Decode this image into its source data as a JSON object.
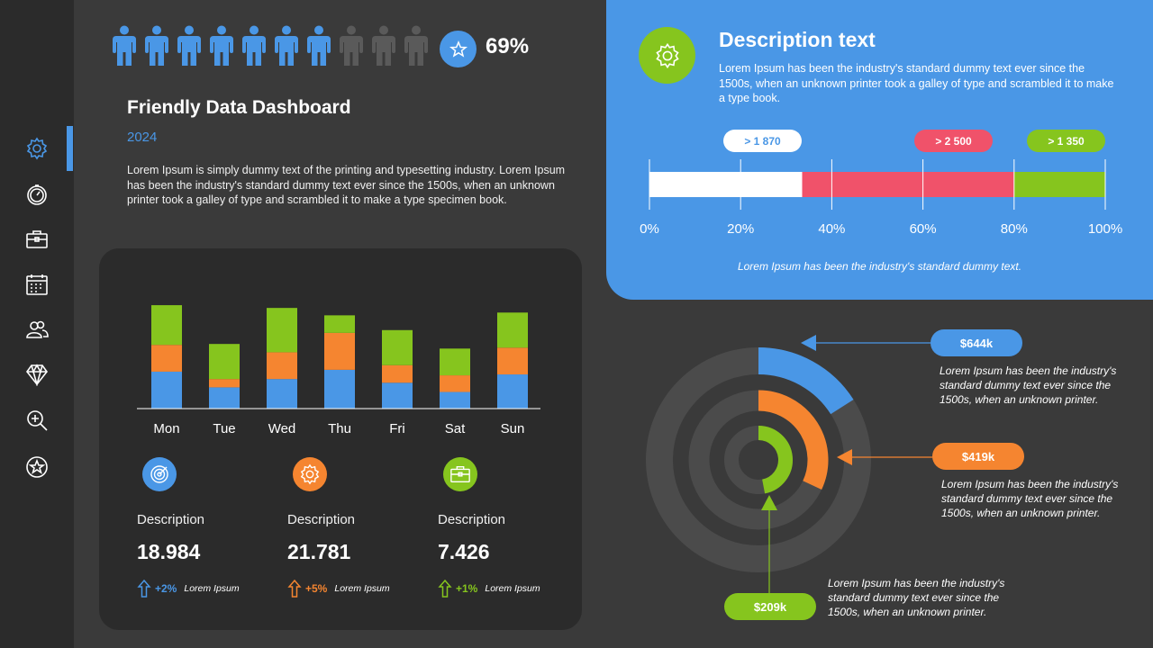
{
  "colors": {
    "blue": "#4a97e6",
    "orange": "#f58530",
    "green": "#86c51e",
    "red": "#f0526a",
    "white": "#ffffff",
    "gray": "#5a5a5a"
  },
  "sidebar": {
    "items": [
      {
        "icon": "gear-icon"
      },
      {
        "icon": "clock-icon"
      },
      {
        "icon": "briefcase-icon"
      },
      {
        "icon": "calendar-icon"
      },
      {
        "icon": "users-icon"
      },
      {
        "icon": "diamond-icon"
      },
      {
        "icon": "zoom-icon"
      },
      {
        "icon": "star-icon"
      }
    ],
    "active_index": 0
  },
  "people": {
    "total": 10,
    "filled": 7,
    "percent_label": "69%"
  },
  "header": {
    "title": "Friendly Data Dashboard",
    "year": "2024",
    "description": "Lorem Ipsum is simply dummy text of the printing and typesetting industry. Lorem Ipsum has been the industry's standard dummy text ever since the 1500s, when an unknown printer took a galley of type and scrambled it to make a type specimen book."
  },
  "chart_data": {
    "type": "bar",
    "stacked": true,
    "categories": [
      "Mon",
      "Tue",
      "Wed",
      "Thu",
      "Fri",
      "Sat",
      "Sun"
    ],
    "series": [
      {
        "values": [
          40,
          23,
          32,
          42,
          28,
          18,
          37
        ],
        "color": "#4a97e6"
      },
      {
        "values": [
          29,
          9,
          29,
          40,
          19,
          18,
          29
        ],
        "color": "#f58530"
      },
      {
        "values": [
          43,
          38,
          48,
          19,
          38,
          29,
          38
        ],
        "color": "#86c51e"
      }
    ],
    "ylim": [
      0,
      115
    ],
    "grid": false
  },
  "kpis": [
    {
      "icon": "target-icon",
      "color": "#4a97e6",
      "label": "Description",
      "value": "18.984",
      "trend": "+2%",
      "note": "Lorem Ipsum"
    },
    {
      "icon": "gear-icon",
      "color": "#f58530",
      "label": "Description",
      "value": "21.781",
      "trend": "+5%",
      "note": "Lorem Ipsum"
    },
    {
      "icon": "briefcase-icon",
      "color": "#86c51e",
      "label": "Description",
      "value": "7.426",
      "trend": "+1%",
      "note": "Lorem Ipsum"
    }
  ],
  "panel": {
    "title": "Description text",
    "description": "Lorem Ipsum has been the industry's standard dummy text ever since the 1500s, when an unknown printer took a galley of type and scrambled it to make a type book.",
    "footer": "Lorem Ipsum has been the industry's standard dummy text.",
    "segments": [
      {
        "label": "> 1 870",
        "start": 0,
        "end": 33.5,
        "color": "#ffffff",
        "label_color": "#4a97e6"
      },
      {
        "label": "> 2 500",
        "start": 33.5,
        "end": 80,
        "color": "#f0526a",
        "label_color": "#ffffff"
      },
      {
        "label": ">  1 350",
        "start": 80,
        "end": 100,
        "color": "#86c51e",
        "label_color": "#ffffff"
      }
    ],
    "ticks": [
      "0%",
      "20%",
      "40%",
      "60%",
      "80%",
      "100%"
    ]
  },
  "rings": [
    {
      "value": "$644k",
      "fraction": 0.16,
      "color": "#4a97e6",
      "note": "Lorem Ipsum has been the industry's standard dummy text ever since the 1500s, when an unknown printer."
    },
    {
      "value": "$419k",
      "fraction": 0.32,
      "color": "#f58530",
      "note": "Lorem Ipsum has been the industry's standard dummy text ever since the 1500s, when an unknown printer."
    },
    {
      "value": "$209k",
      "fraction": 0.47,
      "color": "#86c51e",
      "note": "Lorem Ipsum has been the industry's standard dummy text ever since the 1500s, when an unknown printer."
    }
  ]
}
